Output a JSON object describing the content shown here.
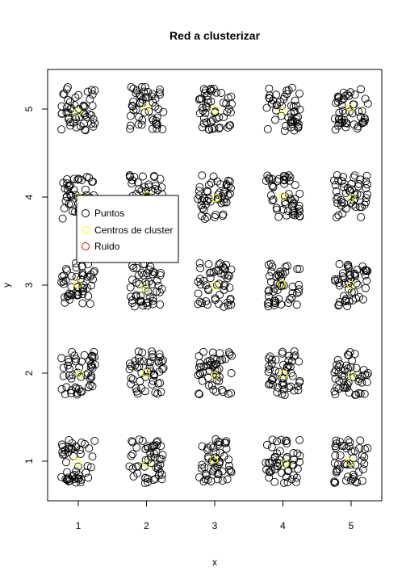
{
  "chart_data": {
    "type": "scatter",
    "title": "Red a clusterizar",
    "xlabel": "x",
    "ylabel": "y",
    "xlim": [
      0.55,
      5.45
    ],
    "ylim": [
      0.55,
      5.45
    ],
    "xticks": [
      1,
      2,
      3,
      4,
      5
    ],
    "yticks": [
      1,
      2,
      3,
      4,
      5
    ],
    "grid": false,
    "legend_position": "top-left",
    "legend": [
      {
        "label": "Puntos",
        "color": "#000000"
      },
      {
        "label": "Centros de cluster",
        "color": "#ffff00"
      },
      {
        "label": "Ruido",
        "color": "#ff0000"
      }
    ],
    "cluster_grid": {
      "x_centers": [
        1,
        2,
        3,
        4,
        5
      ],
      "y_centers": [
        1,
        2,
        3,
        4,
        5
      ],
      "points_per_cluster": 50,
      "spread": 0.25
    },
    "cluster_centers": [
      [
        0.98,
        0.99
      ],
      [
        2.0,
        0.97
      ],
      [
        2.99,
        1.02
      ],
      [
        4.03,
        0.97
      ],
      [
        4.98,
        0.99
      ],
      [
        1.02,
        1.99
      ],
      [
        1.99,
        2.0
      ],
      [
        3.0,
        1.97
      ],
      [
        4.01,
        1.99
      ],
      [
        5.01,
        1.97
      ],
      [
        0.99,
        3.01
      ],
      [
        1.98,
        2.97
      ],
      [
        3.0,
        2.99
      ],
      [
        3.98,
        3.01
      ],
      [
        5.0,
        3.0
      ],
      [
        1.02,
        3.99
      ],
      [
        2.01,
        4.02
      ],
      [
        3.02,
        3.99
      ],
      [
        4.0,
        4.01
      ],
      [
        5.01,
        3.99
      ],
      [
        0.99,
        4.97
      ],
      [
        2.0,
        5.02
      ],
      [
        3.01,
        4.99
      ],
      [
        3.99,
        4.98
      ],
      [
        4.99,
        5.01
      ]
    ],
    "noise_points": []
  }
}
